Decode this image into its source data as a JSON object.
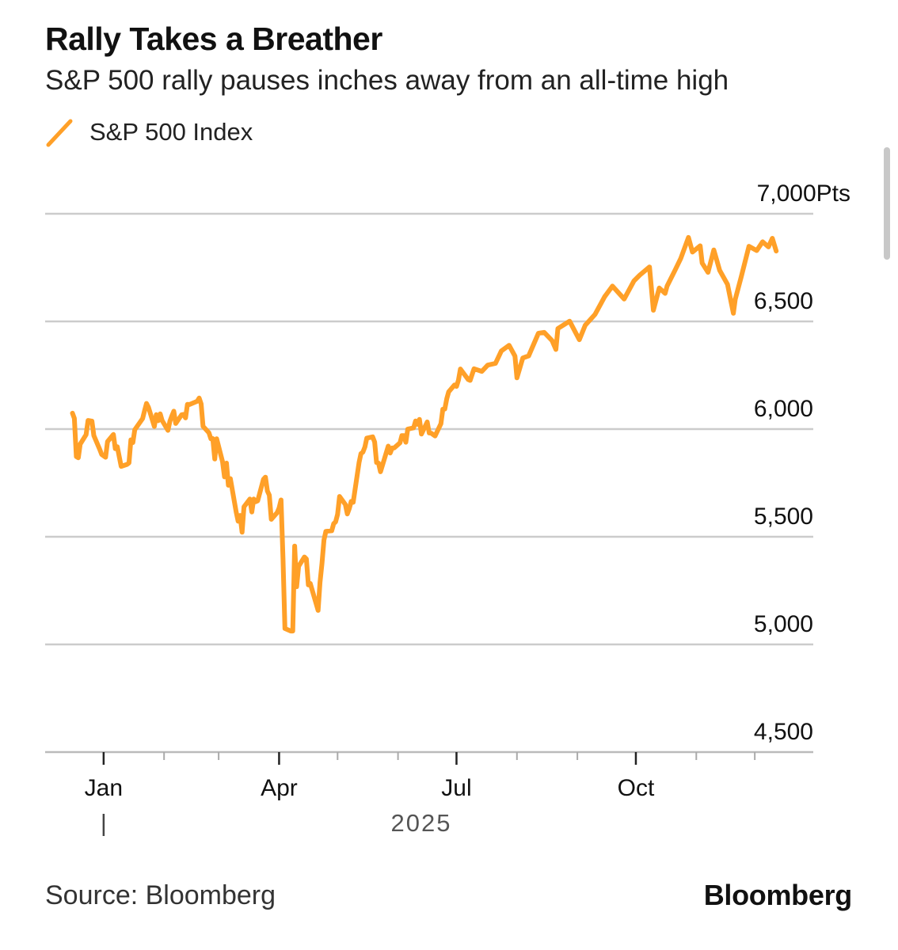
{
  "header": {
    "title": "Rally Takes a Breather",
    "subtitle": "S&P 500 rally pauses inches away from an all-time high"
  },
  "footer": {
    "source": "Source: Bloomberg",
    "brand": "Bloomberg"
  },
  "colors": {
    "series": "#FFA028",
    "grid": "#cccccc",
    "axis": "#555555",
    "text": "#111111"
  },
  "chart_data": {
    "type": "line",
    "title": "Rally Takes a Breather",
    "subtitle": "S&P 500 rally pauses inches away from an all-time high",
    "legend": "top-left",
    "grid": true,
    "ylim": [
      4500,
      7000
    ],
    "yticks": [
      4500,
      5000,
      5500,
      6000,
      6500,
      7000
    ],
    "ytick_labels": [
      "4,500",
      "5,000",
      "5,500",
      "6,000",
      "6,500",
      "7,000Pts"
    ],
    "xlim": [
      "2024-12-02",
      "2025-12-31"
    ],
    "xticks": [
      "2025-01-01",
      "2025-04-01",
      "2025-07-01",
      "2025-10-01"
    ],
    "xtick_labels": [
      "Jan",
      "Apr",
      "Jul",
      "Oct"
    ],
    "x_year_label": "2025",
    "series": [
      {
        "name": "S&P 500 Index",
        "x": [
          "2024-12-16",
          "2024-12-17",
          "2024-12-18",
          "2024-12-19",
          "2024-12-20",
          "2024-12-23",
          "2024-12-24",
          "2024-12-26",
          "2024-12-27",
          "2024-12-30",
          "2024-12-31",
          "2025-01-02",
          "2025-01-03",
          "2025-01-06",
          "2025-01-07",
          "2025-01-08",
          "2025-01-10",
          "2025-01-13",
          "2025-01-14",
          "2025-01-15",
          "2025-01-16",
          "2025-01-17",
          "2025-01-21",
          "2025-01-22",
          "2025-01-23",
          "2025-01-24",
          "2025-01-27",
          "2025-01-28",
          "2025-01-29",
          "2025-01-30",
          "2025-01-31",
          "2025-02-03",
          "2025-02-04",
          "2025-02-05",
          "2025-02-06",
          "2025-02-07",
          "2025-02-10",
          "2025-02-11",
          "2025-02-12",
          "2025-02-13",
          "2025-02-14",
          "2025-02-18",
          "2025-02-19",
          "2025-02-20",
          "2025-02-21",
          "2025-02-24",
          "2025-02-25",
          "2025-02-26",
          "2025-02-27",
          "2025-02-28",
          "2025-03-03",
          "2025-03-04",
          "2025-03-05",
          "2025-03-06",
          "2025-03-07",
          "2025-03-10",
          "2025-03-11",
          "2025-03-12",
          "2025-03-13",
          "2025-03-14",
          "2025-03-17",
          "2025-03-18",
          "2025-03-19",
          "2025-03-20",
          "2025-03-21",
          "2025-03-24",
          "2025-03-25",
          "2025-03-26",
          "2025-03-27",
          "2025-03-28",
          "2025-03-31",
          "2025-04-01",
          "2025-04-02",
          "2025-04-03",
          "2025-04-04",
          "2025-04-07",
          "2025-04-08",
          "2025-04-09",
          "2025-04-10",
          "2025-04-11",
          "2025-04-14",
          "2025-04-15",
          "2025-04-16",
          "2025-04-17",
          "2025-04-21",
          "2025-04-22",
          "2025-04-23",
          "2025-04-24",
          "2025-04-25",
          "2025-04-28",
          "2025-04-29",
          "2025-04-30",
          "2025-05-01",
          "2025-05-02",
          "2025-05-05",
          "2025-05-06",
          "2025-05-07",
          "2025-05-08",
          "2025-05-09",
          "2025-05-12",
          "2025-05-13",
          "2025-05-14",
          "2025-05-15",
          "2025-05-16",
          "2025-05-19",
          "2025-05-20",
          "2025-05-21",
          "2025-05-22",
          "2025-05-23",
          "2025-05-27",
          "2025-05-28",
          "2025-05-29",
          "2025-05-30",
          "2025-06-02",
          "2025-06-03",
          "2025-06-04",
          "2025-06-05",
          "2025-06-06",
          "2025-06-09",
          "2025-06-10",
          "2025-06-11",
          "2025-06-12",
          "2025-06-13",
          "2025-06-16",
          "2025-06-17",
          "2025-06-18",
          "2025-06-20",
          "2025-06-23",
          "2025-06-24",
          "2025-06-25",
          "2025-06-26",
          "2025-06-27",
          "2025-06-30",
          "2025-07-01",
          "2025-07-02",
          "2025-07-03",
          "2025-07-07",
          "2025-07-08",
          "2025-07-10",
          "2025-07-14",
          "2025-07-17",
          "2025-07-21",
          "2025-07-24",
          "2025-07-28",
          "2025-07-31",
          "2025-08-01",
          "2025-08-04",
          "2025-08-07",
          "2025-08-12",
          "2025-08-15",
          "2025-08-19",
          "2025-08-21",
          "2025-08-22",
          "2025-08-28",
          "2025-09-02",
          "2025-09-05",
          "2025-09-10",
          "2025-09-15",
          "2025-09-19",
          "2025-09-25",
          "2025-09-30",
          "2025-10-03",
          "2025-10-08",
          "2025-10-10",
          "2025-10-13",
          "2025-10-16",
          "2025-10-17",
          "2025-10-21",
          "2025-10-24",
          "2025-10-28",
          "2025-10-30",
          "2025-11-03",
          "2025-11-04",
          "2025-11-07",
          "2025-11-10",
          "2025-11-13",
          "2025-11-17",
          "2025-11-20",
          "2025-11-21",
          "2025-11-24",
          "2025-11-28",
          "2025-12-02",
          "2025-12-05",
          "2025-12-08",
          "2025-12-10",
          "2025-12-12"
        ],
        "y": [
          6074,
          6050,
          5872,
          5867,
          5930,
          5974,
          6040,
          6037,
          5970,
          5906,
          5882,
          5869,
          5942,
          5975,
          5909,
          5918,
          5827,
          5836,
          5843,
          5950,
          5937,
          5997,
          6049,
          6086,
          6119,
          6101,
          6012,
          6067,
          6039,
          6071,
          6040,
          5994,
          6037,
          6061,
          6083,
          6026,
          6066,
          6068,
          6052,
          6115,
          6114,
          6129,
          6144,
          6117,
          6013,
          5983,
          5955,
          5956,
          5861,
          5955,
          5849,
          5778,
          5842,
          5739,
          5770,
          5614,
          5572,
          5599,
          5521,
          5639,
          5675,
          5615,
          5675,
          5663,
          5667,
          5767,
          5777,
          5712,
          5693,
          5581,
          5612,
          5633,
          5671,
          5396,
          5074,
          5062,
          5062,
          5457,
          5268,
          5363,
          5406,
          5397,
          5276,
          5283,
          5158,
          5288,
          5376,
          5485,
          5525,
          5528,
          5561,
          5569,
          5604,
          5687,
          5650,
          5606,
          5631,
          5664,
          5660,
          5844,
          5886,
          5893,
          5917,
          5958,
          5964,
          5940,
          5845,
          5842,
          5802,
          5921,
          5889,
          5912,
          5912,
          5936,
          5970,
          5970,
          5939,
          6000,
          6006,
          6038,
          6022,
          6045,
          5977,
          6033,
          5982,
          5981,
          5968,
          6025,
          6092,
          6093,
          6141,
          6173,
          6205,
          6198,
          6227,
          6279,
          6230,
          6226,
          6280,
          6268,
          6297,
          6305,
          6363,
          6389,
          6339,
          6238,
          6330,
          6340,
          6445,
          6449,
          6411,
          6370,
          6467,
          6501,
          6415,
          6482,
          6532,
          6615,
          6664,
          6604,
          6688,
          6715,
          6753,
          6552,
          6655,
          6630,
          6664,
          6736,
          6792,
          6890,
          6822,
          6851,
          6771,
          6728,
          6832,
          6737,
          6672,
          6538,
          6603,
          6705,
          6849,
          6829,
          6870,
          6846,
          6886,
          6827
        ]
      }
    ]
  }
}
